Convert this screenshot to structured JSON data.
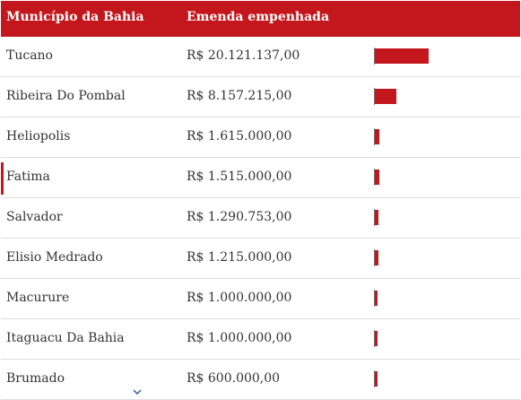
{
  "header": {
    "municipio_label": "Município da Bahia",
    "emenda_label": "Emenda empenhada"
  },
  "accent_color": "#c4171d",
  "rows": [
    {
      "municipio": "Tucano",
      "emenda": "R$ 20.121.137,00",
      "amount": 20121137.0,
      "active": false
    },
    {
      "municipio": "Ribeira Do Pombal",
      "emenda": "R$ 8.157.215,00",
      "amount": 8157215.0,
      "active": false
    },
    {
      "municipio": "Heliopolis",
      "emenda": "R$ 1.615.000,00",
      "amount": 1615000.0,
      "active": false
    },
    {
      "municipio": "Fatima",
      "emenda": "R$ 1.515.000,00",
      "amount": 1515000.0,
      "active": true
    },
    {
      "municipio": "Salvador",
      "emenda": "R$ 1.290.753,00",
      "amount": 1290753.0,
      "active": false
    },
    {
      "municipio": "Elisio Medrado",
      "emenda": "R$ 1.215.000,00",
      "amount": 1215000.0,
      "active": false
    },
    {
      "municipio": "Macurure",
      "emenda": "R$ 1.000.000,00",
      "amount": 1000000.0,
      "active": false
    },
    {
      "municipio": "Itaguacu Da Bahia",
      "emenda": "R$ 1.000.000,00",
      "amount": 1000000.0,
      "active": false
    },
    {
      "municipio": "Brumado",
      "emenda": "R$ 600.000,00",
      "amount": 600000.0,
      "active": false
    }
  ],
  "icons": {
    "scroll_more": "chevron-down-icon"
  }
}
